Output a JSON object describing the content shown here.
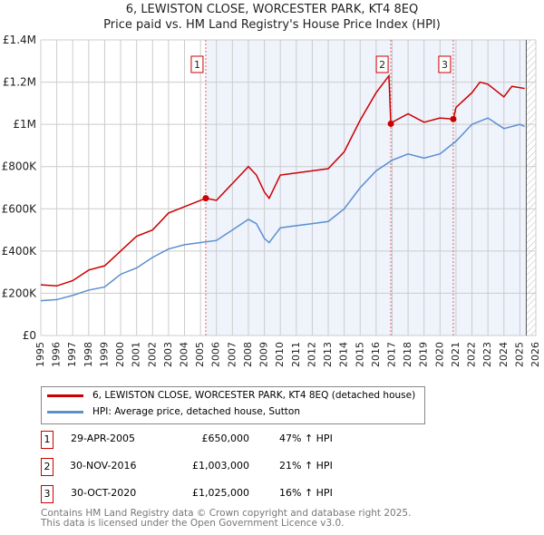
{
  "chart_data": {
    "type": "line",
    "title": "6, LEWISTON CLOSE, WORCESTER PARK, KT4 8EQ",
    "subtitle": "Price paid vs. HM Land Registry's House Price Index (HPI)",
    "xlim": [
      1995,
      2026
    ],
    "ylim": [
      0,
      1400000
    ],
    "yticks": [
      {
        "v": 0,
        "label": "£0"
      },
      {
        "v": 200000,
        "label": "£200K"
      },
      {
        "v": 400000,
        "label": "£400K"
      },
      {
        "v": 600000,
        "label": "£600K"
      },
      {
        "v": 800000,
        "label": "£800K"
      },
      {
        "v": 1000000,
        "label": "£1M"
      },
      {
        "v": 1200000,
        "label": "£1.2M"
      },
      {
        "v": 1400000,
        "label": "£1.4M"
      }
    ],
    "xticks": [
      1995,
      1996,
      1997,
      1998,
      1999,
      2000,
      2001,
      2002,
      2003,
      2004,
      2005,
      2006,
      2007,
      2008,
      2009,
      2010,
      2011,
      2012,
      2013,
      2014,
      2015,
      2016,
      2017,
      2018,
      2019,
      2020,
      2021,
      2022,
      2023,
      2024,
      2025,
      2026
    ],
    "shaded_from": 2005.33,
    "hatched_from": 2025.4,
    "series": [
      {
        "name": "6, LEWISTON CLOSE, WORCESTER PARK, KT4 8EQ (detached house)",
        "color": "#cc0000",
        "x": [
          1995,
          1996,
          1997,
          1998,
          1999,
          2000,
          2001,
          2002,
          2003,
          2004,
          2005.33,
          2006,
          2007,
          2008,
          2008.5,
          2009,
          2009.3,
          2010,
          2011,
          2012,
          2013,
          2014,
          2015,
          2016,
          2016.8,
          2016.92,
          2017,
          2018,
          2019,
          2020,
          2020.83,
          2021,
          2022,
          2022.5,
          2023,
          2024,
          2024.5,
          2025.3
        ],
        "y": [
          240000,
          235000,
          260000,
          310000,
          330000,
          400000,
          470000,
          500000,
          580000,
          610000,
          650000,
          640000,
          720000,
          800000,
          760000,
          680000,
          650000,
          760000,
          770000,
          780000,
          790000,
          870000,
          1020000,
          1150000,
          1230000,
          1003000,
          1010000,
          1050000,
          1010000,
          1030000,
          1025000,
          1080000,
          1150000,
          1200000,
          1190000,
          1130000,
          1180000,
          1170000
        ]
      },
      {
        "name": "HPI: Average price, detached house, Sutton",
        "color": "#5b8fd0",
        "x": [
          1995,
          1996,
          1997,
          1998,
          1999,
          2000,
          2001,
          2002,
          2003,
          2004,
          2005,
          2006,
          2007,
          2008,
          2008.5,
          2009,
          2009.3,
          2010,
          2011,
          2012,
          2013,
          2014,
          2015,
          2016,
          2017,
          2018,
          2019,
          2020,
          2021,
          2022,
          2023,
          2024,
          2025,
          2025.3
        ],
        "y": [
          165000,
          170000,
          190000,
          215000,
          230000,
          290000,
          320000,
          370000,
          410000,
          430000,
          440000,
          450000,
          500000,
          550000,
          530000,
          460000,
          440000,
          510000,
          520000,
          530000,
          540000,
          600000,
          700000,
          780000,
          830000,
          860000,
          840000,
          860000,
          920000,
          1000000,
          1030000,
          980000,
          1000000,
          990000
        ]
      }
    ],
    "sales": [
      {
        "n": "1",
        "x": 2005.33,
        "y": 650000,
        "date": "29-APR-2005",
        "price": "£650,000",
        "hpi": "47% ↑ HPI"
      },
      {
        "n": "2",
        "x": 2016.92,
        "y": 1003000,
        "date": "30-NOV-2016",
        "price": "£1,003,000",
        "hpi": "21% ↑ HPI"
      },
      {
        "n": "3",
        "x": 2020.83,
        "y": 1025000,
        "date": "30-OCT-2020",
        "price": "£1,025,000",
        "hpi": "16% ↑ HPI"
      }
    ]
  },
  "footer": [
    "Contains HM Land Registry data © Crown copyright and database right 2025.",
    "This data is licensed under the Open Government Licence v3.0."
  ]
}
